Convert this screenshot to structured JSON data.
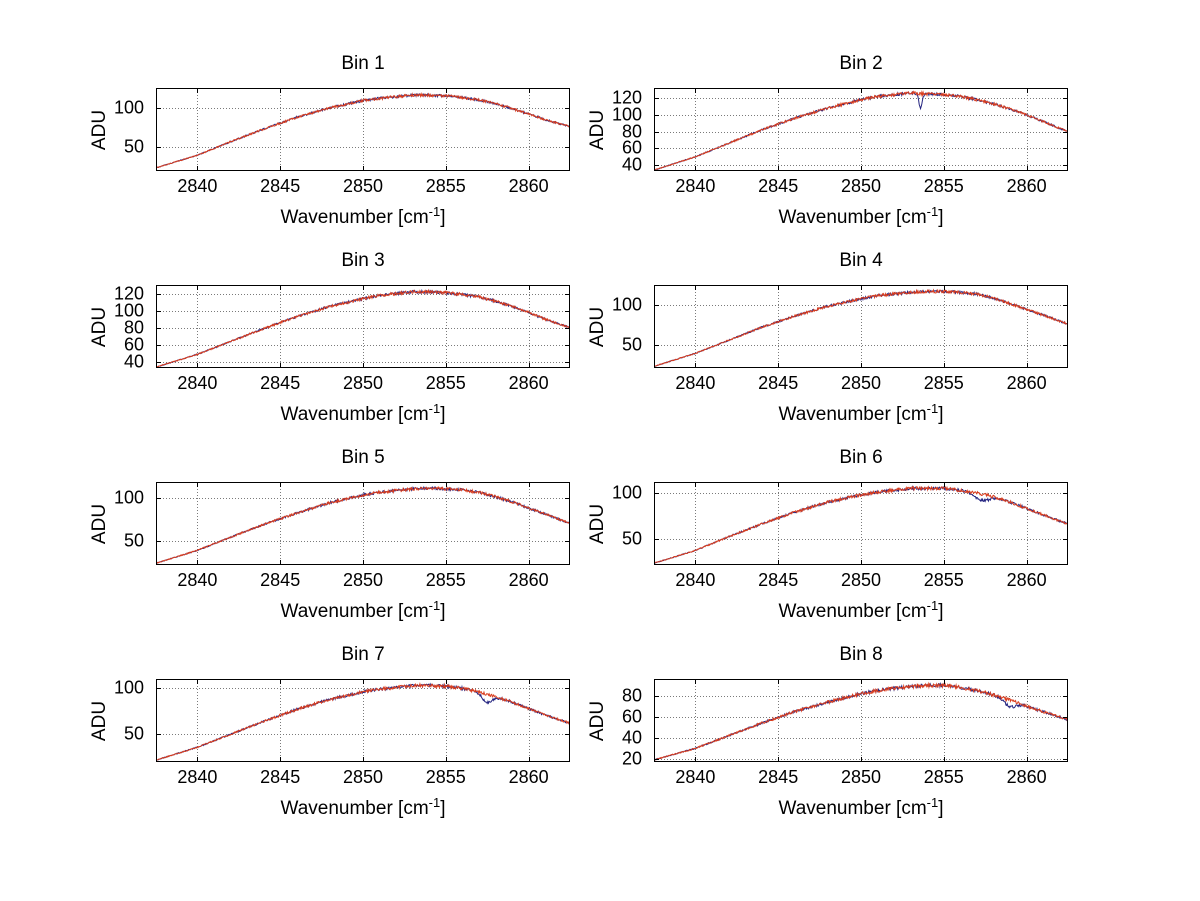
{
  "figure": {
    "background": "#ffffff",
    "line_color": "#d93d1e",
    "line2_color": "#22227f",
    "grid_color": "#7a7a7a",
    "axis_color": "#000000"
  },
  "labels": {
    "ylabel": "ADU",
    "xlabel_prefix": "Wavenumber [cm",
    "xlabel_sup": "-1",
    "xlabel_suffix": "]"
  },
  "chart_data": [
    {
      "type": "line",
      "title": "Bin 1",
      "xlabel": "Wavenumber [cm^-1]",
      "ylabel": "ADU",
      "legend": null,
      "grid": true,
      "xlim": [
        2837.5,
        2862.5
      ],
      "xticks": [
        2840,
        2845,
        2850,
        2855,
        2860
      ],
      "ylim": [
        20,
        125
      ],
      "yticks": [
        50,
        100
      ],
      "x": [
        2837.5,
        2840,
        2842,
        2844,
        2846,
        2848,
        2850,
        2851,
        2852,
        2853,
        2854,
        2855,
        2856,
        2857,
        2858,
        2859,
        2860,
        2861,
        2862.5
      ],
      "y": [
        24,
        40,
        57,
        73,
        88,
        100,
        109,
        112,
        114,
        116,
        116,
        115,
        113,
        110,
        105,
        99,
        92,
        85,
        76
      ],
      "dips": []
    },
    {
      "type": "line",
      "title": "Bin 2",
      "xlabel": "Wavenumber [cm^-1]",
      "ylabel": "ADU",
      "legend": null,
      "grid": true,
      "xlim": [
        2837.5,
        2862.5
      ],
      "xticks": [
        2840,
        2845,
        2850,
        2855,
        2860
      ],
      "ylim": [
        33,
        132
      ],
      "yticks": [
        40,
        60,
        80,
        100,
        120
      ],
      "x": [
        2837.5,
        2840,
        2842,
        2844,
        2846,
        2848,
        2850,
        2851,
        2852,
        2853,
        2854,
        2855,
        2856,
        2857,
        2858,
        2859,
        2860,
        2861,
        2862.5
      ],
      "y": [
        34,
        50,
        66,
        82,
        96,
        108,
        118,
        122,
        124,
        126,
        125,
        124,
        122,
        118,
        113,
        107,
        100,
        92,
        80
      ],
      "dips": [
        {
          "x": 2853.6,
          "depth": 17,
          "width": 0.1
        }
      ]
    },
    {
      "type": "line",
      "title": "Bin 3",
      "xlabel": "Wavenumber [cm^-1]",
      "ylabel": "ADU",
      "legend": null,
      "grid": true,
      "xlim": [
        2837.5,
        2862.5
      ],
      "xticks": [
        2840,
        2845,
        2850,
        2855,
        2860
      ],
      "ylim": [
        33,
        130
      ],
      "yticks": [
        40,
        60,
        80,
        100,
        120
      ],
      "x": [
        2837.5,
        2840,
        2842,
        2844,
        2846,
        2848,
        2850,
        2851,
        2852,
        2853,
        2854,
        2855,
        2856,
        2857,
        2858,
        2859,
        2860,
        2861,
        2862.5
      ],
      "y": [
        34,
        49,
        64,
        79,
        93,
        105,
        114,
        118,
        120,
        122,
        122,
        121,
        119,
        116,
        111,
        105,
        98,
        90,
        80
      ],
      "dips": []
    },
    {
      "type": "line",
      "title": "Bin 4",
      "xlabel": "Wavenumber [cm^-1]",
      "ylabel": "ADU",
      "legend": null,
      "grid": true,
      "xlim": [
        2837.5,
        2862.5
      ],
      "xticks": [
        2840,
        2845,
        2850,
        2855,
        2860
      ],
      "ylim": [
        22,
        124
      ],
      "yticks": [
        50,
        100
      ],
      "x": [
        2837.5,
        2840,
        2842,
        2844,
        2846,
        2848,
        2850,
        2851,
        2852,
        2853,
        2854,
        2855,
        2856,
        2857,
        2858,
        2859,
        2860,
        2861,
        2862.5
      ],
      "y": [
        24,
        40,
        56,
        72,
        86,
        98,
        107,
        111,
        113,
        115,
        116,
        116,
        115,
        113,
        108,
        101,
        94,
        87,
        76
      ],
      "dips": []
    },
    {
      "type": "line",
      "title": "Bin 5",
      "xlabel": "Wavenumber [cm^-1]",
      "ylabel": "ADU",
      "legend": null,
      "grid": true,
      "xlim": [
        2837.5,
        2862.5
      ],
      "xticks": [
        2840,
        2845,
        2850,
        2855,
        2860
      ],
      "ylim": [
        22,
        118
      ],
      "yticks": [
        50,
        100
      ],
      "x": [
        2837.5,
        2840,
        2842,
        2844,
        2846,
        2848,
        2850,
        2851,
        2852,
        2853,
        2854,
        2855,
        2856,
        2857,
        2858,
        2859,
        2860,
        2861,
        2862.5
      ],
      "y": [
        24,
        39,
        54,
        69,
        82,
        94,
        103,
        106,
        108,
        110,
        111,
        110,
        109,
        106,
        101,
        95,
        88,
        81,
        70
      ],
      "dips": []
    },
    {
      "type": "line",
      "title": "Bin 6",
      "xlabel": "Wavenumber [cm^-1]",
      "ylabel": "ADU",
      "legend": null,
      "grid": true,
      "xlim": [
        2837.5,
        2862.5
      ],
      "xticks": [
        2840,
        2845,
        2850,
        2855,
        2860
      ],
      "ylim": [
        21,
        112
      ],
      "yticks": [
        50,
        100
      ],
      "x": [
        2837.5,
        2840,
        2842,
        2844,
        2846,
        2848,
        2850,
        2851,
        2852,
        2853,
        2854,
        2855,
        2856,
        2857,
        2858,
        2859,
        2860,
        2861,
        2862.5
      ],
      "y": [
        23,
        37,
        52,
        66,
        79,
        90,
        98,
        101,
        103,
        105,
        105,
        105,
        103,
        100,
        96,
        90,
        83,
        76,
        66
      ],
      "dips": [
        {
          "x": 2857.3,
          "depth": 7,
          "width": 0.45
        }
      ]
    },
    {
      "type": "line",
      "title": "Bin 7",
      "xlabel": "Wavenumber [cm^-1]",
      "ylabel": "ADU",
      "legend": null,
      "grid": true,
      "xlim": [
        2837.5,
        2862.5
      ],
      "xticks": [
        2840,
        2845,
        2850,
        2855,
        2860
      ],
      "ylim": [
        20,
        110
      ],
      "yticks": [
        50,
        100
      ],
      "x": [
        2837.5,
        2840,
        2842,
        2844,
        2846,
        2848,
        2850,
        2851,
        2852,
        2853,
        2854,
        2855,
        2856,
        2857,
        2858,
        2859,
        2860,
        2861,
        2862.5
      ],
      "y": [
        22,
        36,
        50,
        64,
        77,
        88,
        96,
        99,
        101,
        103,
        103,
        102,
        100,
        96,
        91,
        85,
        78,
        71,
        62
      ],
      "dips": [
        {
          "x": 2857.5,
          "depth": 9,
          "width": 0.3
        }
      ]
    },
    {
      "type": "line",
      "title": "Bin 8",
      "xlabel": "Wavenumber [cm^-1]",
      "ylabel": "ADU",
      "legend": null,
      "grid": true,
      "xlim": [
        2837.5,
        2862.5
      ],
      "xticks": [
        2840,
        2845,
        2850,
        2855,
        2860
      ],
      "ylim": [
        17,
        96
      ],
      "yticks": [
        20,
        40,
        60,
        80
      ],
      "x": [
        2837.5,
        2840,
        2842,
        2844,
        2846,
        2848,
        2850,
        2851,
        2852,
        2853,
        2854,
        2855,
        2856,
        2857,
        2858,
        2859,
        2860,
        2861,
        2862.5
      ],
      "y": [
        19,
        30,
        42,
        54,
        65,
        74,
        82,
        85,
        87,
        89,
        90,
        90,
        88,
        85,
        81,
        76,
        70,
        65,
        57
      ],
      "dips": [
        {
          "x": 2859.0,
          "depth": 6,
          "width": 0.35
        }
      ]
    }
  ]
}
